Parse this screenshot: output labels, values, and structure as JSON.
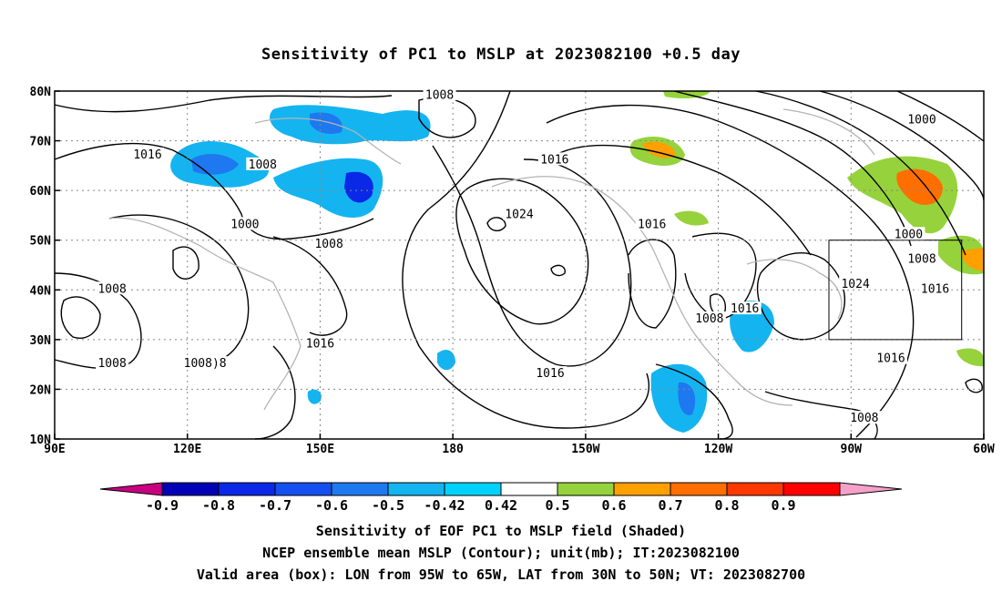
{
  "title": "Sensitivity of PC1 to MSLP at 2023082100 +0.5 day",
  "map": {
    "lon_labels": [
      "90E",
      "120E",
      "150E",
      "180",
      "150W",
      "120W",
      "90W",
      "60W"
    ],
    "lat_labels": [
      "80N",
      "70N",
      "60N",
      "50N",
      "40N",
      "30N",
      "20N",
      "10N"
    ],
    "lon_range": [
      90,
      300
    ],
    "lat_range": [
      10,
      80
    ],
    "valid_box": {
      "lon": [
        265,
        295
      ],
      "lat": [
        30,
        50
      ]
    },
    "contour_labels": [
      {
        "text": "1008",
        "lon": 177,
        "lat": 79
      },
      {
        "text": "1000",
        "lon": 286,
        "lat": 74
      },
      {
        "text": "1016",
        "lon": 111,
        "lat": 67
      },
      {
        "text": "1008",
        "lon": 137,
        "lat": 65
      },
      {
        "text": "1016",
        "lon": 203,
        "lat": 66
      },
      {
        "text": "1024",
        "lon": 195,
        "lat": 55
      },
      {
        "text": "1016",
        "lon": 225,
        "lat": 53
      },
      {
        "text": "1000",
        "lon": 133,
        "lat": 53
      },
      {
        "text": "1008",
        "lon": 152,
        "lat": 49
      },
      {
        "text": "1000",
        "lon": 283,
        "lat": 51
      },
      {
        "text": "1008",
        "lon": 286,
        "lat": 46
      },
      {
        "text": "1024",
        "lon": 271,
        "lat": 41
      },
      {
        "text": "1016",
        "lon": 289,
        "lat": 40
      },
      {
        "text": "1008",
        "lon": 103,
        "lat": 40
      },
      {
        "text": "1016",
        "lon": 246,
        "lat": 36
      },
      {
        "text": "1008",
        "lon": 238,
        "lat": 34
      },
      {
        "text": "1016",
        "lon": 150,
        "lat": 29
      },
      {
        "text": "1008",
        "lon": 103,
        "lat": 25
      },
      {
        "text": "1008)8",
        "lon": 124,
        "lat": 25
      },
      {
        "text": "1016",
        "lon": 202,
        "lat": 23
      },
      {
        "text": "1016",
        "lon": 279,
        "lat": 26
      },
      {
        "text": "1008",
        "lon": 273,
        "lat": 14
      }
    ]
  },
  "colorbar": {
    "labels": [
      "-0.9",
      "-0.8",
      "-0.7",
      "-0.6",
      "-0.5",
      "-0.42",
      "0.42",
      "0.5",
      "0.6",
      "0.7",
      "0.8",
      "0.9"
    ],
    "low_color": "#c8007f",
    "high_color": "#f5a0c8",
    "colors": [
      "#0000b4",
      "#0a28e6",
      "#1450f0",
      "#1e78f0",
      "#14b4f0",
      "#00d2ff",
      "#ffffff",
      "#96d23c",
      "#ffa000",
      "#ff6e00",
      "#ff3700",
      "#ff0000"
    ]
  },
  "captions": [
    "Sensitivity of EOF PC1 to MSLP field (Shaded)",
    "NCEP ensemble mean MSLP (Contour); unit(mb); IT:2023082100",
    "Valid area (box): LON from 95W to 65W, LAT from 30N to 50N; VT: 2023082700"
  ]
}
